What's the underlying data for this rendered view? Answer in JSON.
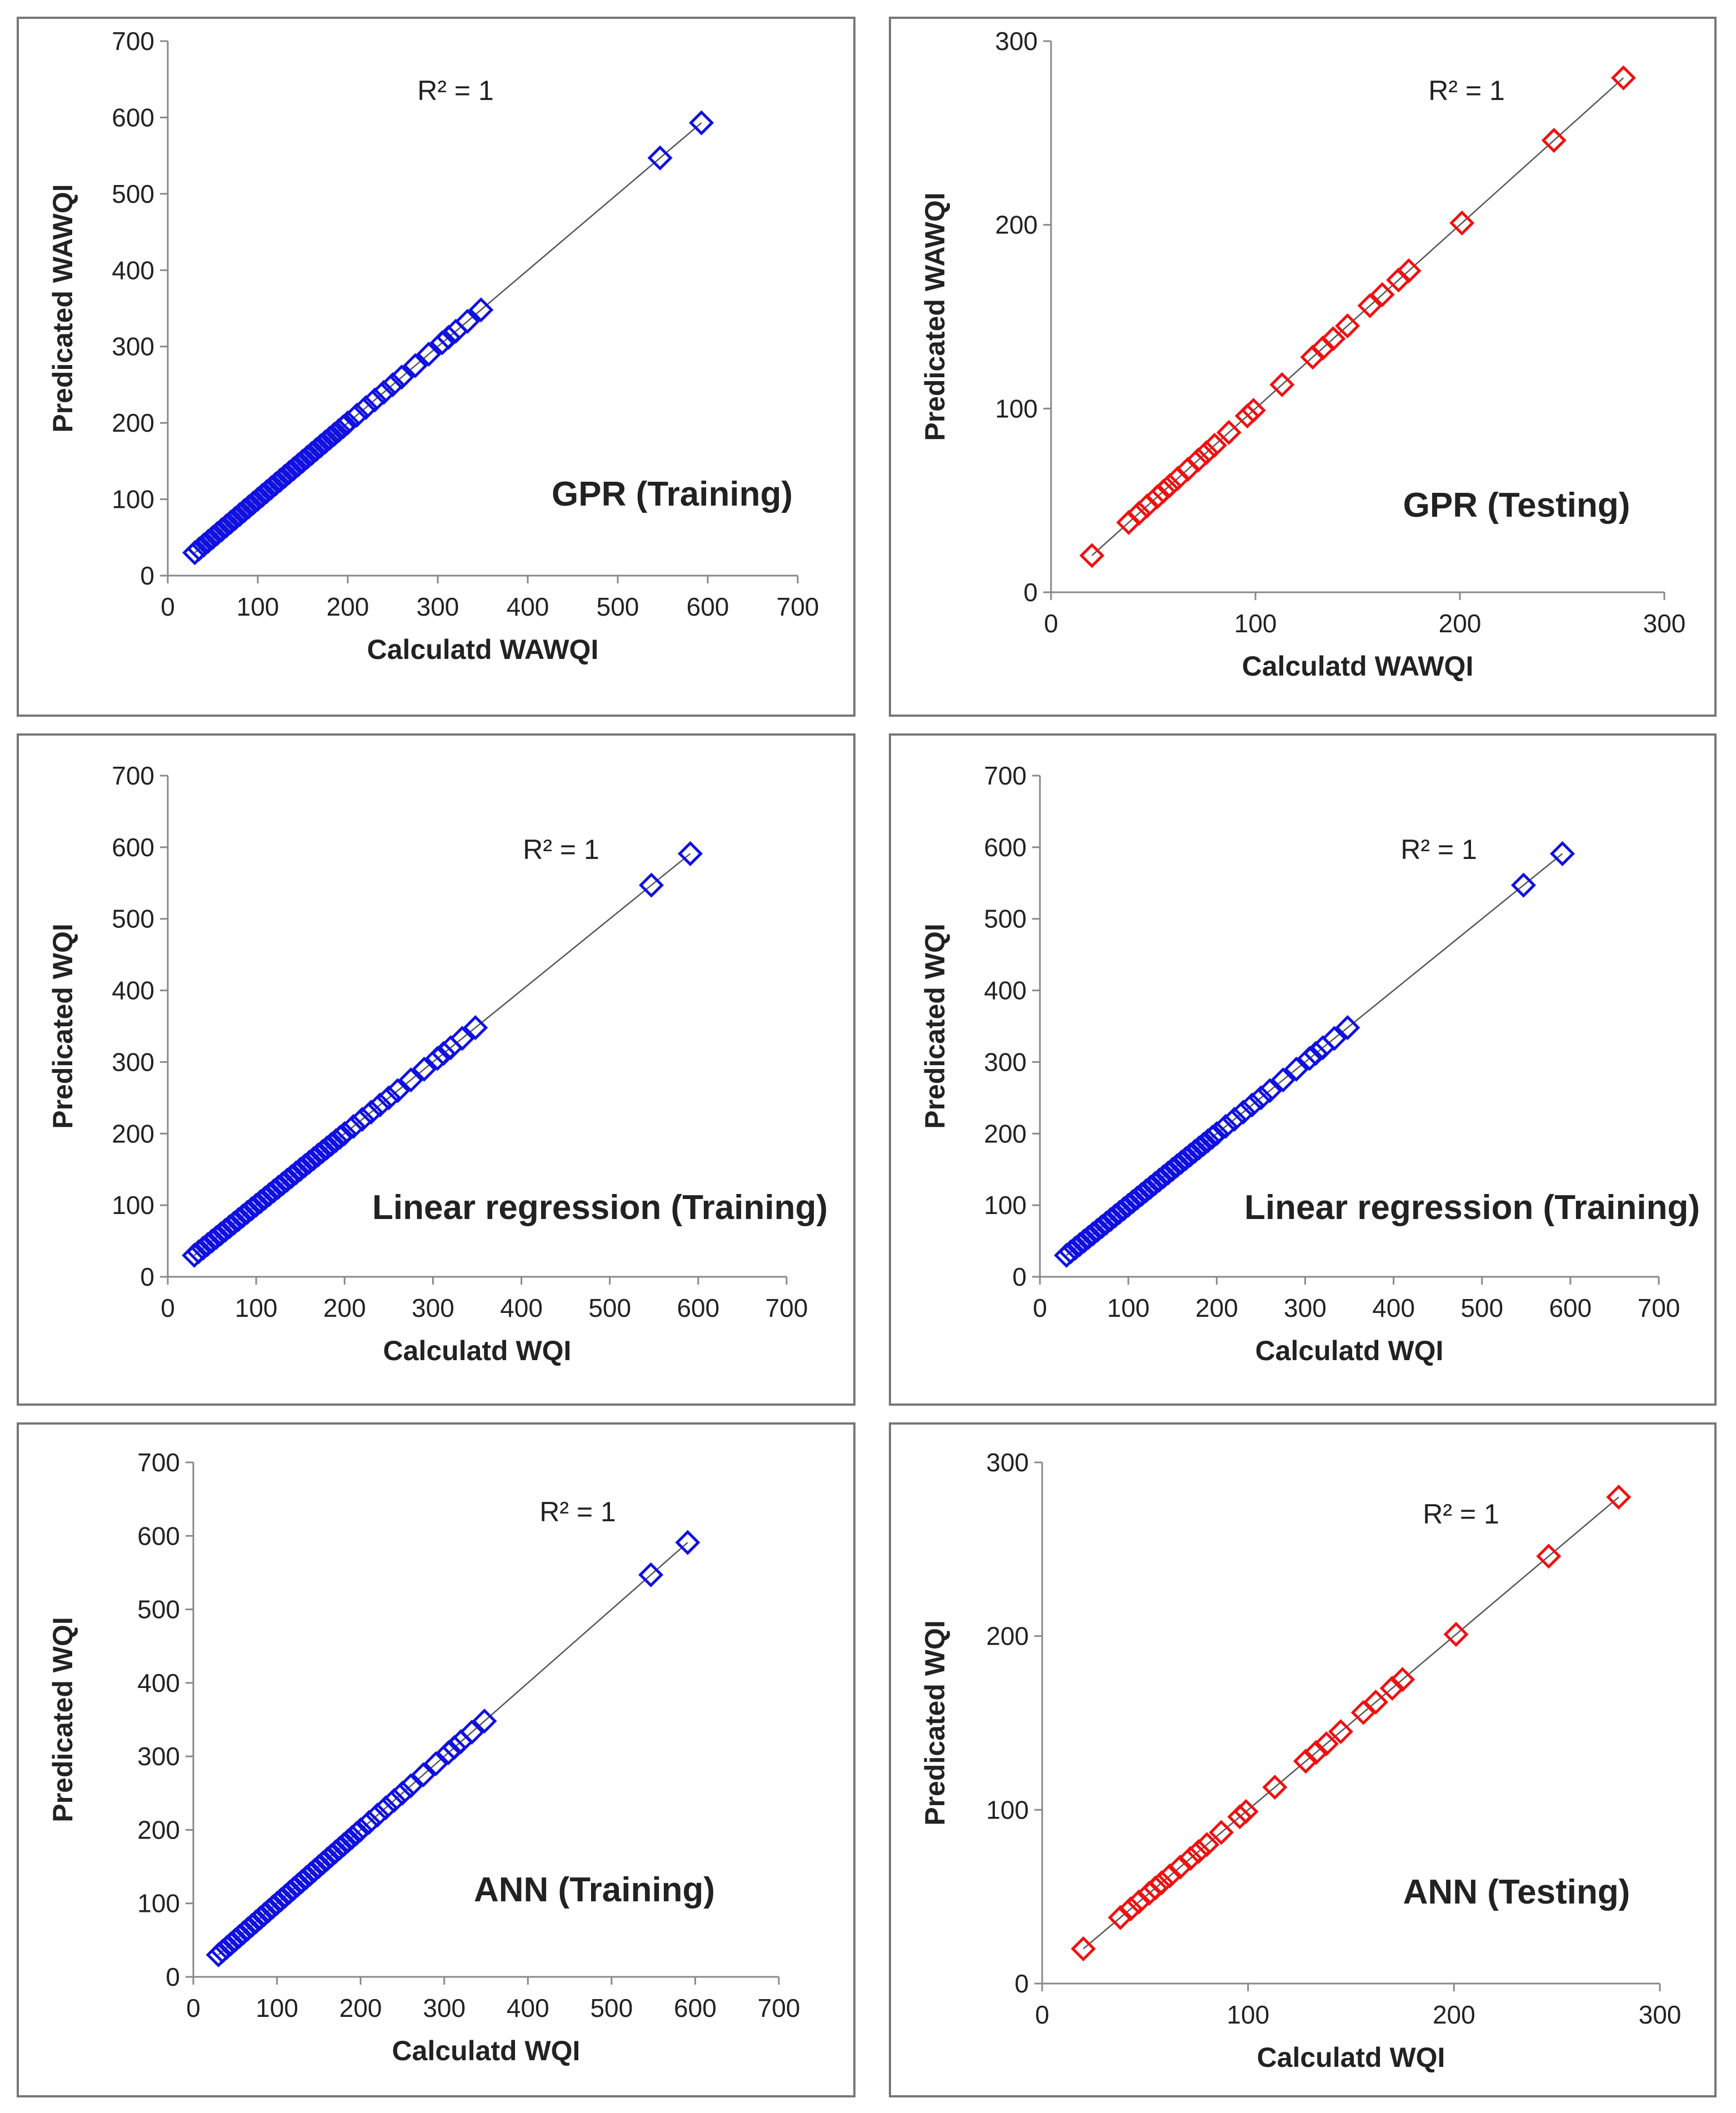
{
  "colors": {
    "training": "#1010e0",
    "testing": "#ee1111",
    "fit_line": "#555555",
    "axis": "#888888",
    "frame": "#777777"
  },
  "chart_data": [
    {
      "type": "scatter",
      "title": "GPR (Training)",
      "xlabel": "Calculatd WAWQI",
      "ylabel": "Predicated WAWQI",
      "annotation": "R² = 1",
      "xlim": [
        0,
        700
      ],
      "ylim": [
        0,
        700
      ],
      "xticks": [
        "0",
        "100",
        "200",
        "300",
        "400",
        "500",
        "600",
        "700"
      ],
      "yticks": [
        "0",
        "100",
        "200",
        "300",
        "400",
        "500",
        "600",
        "700"
      ],
      "series": [
        {
          "name": "Training",
          "color": "#1010e0",
          "x": [
            30,
            35,
            40,
            45,
            50,
            55,
            60,
            65,
            70,
            75,
            80,
            85,
            90,
            95,
            100,
            105,
            110,
            115,
            120,
            125,
            130,
            135,
            140,
            145,
            150,
            155,
            160,
            165,
            170,
            175,
            180,
            185,
            190,
            195,
            200,
            210,
            220,
            230,
            240,
            250,
            260,
            275,
            290,
            305,
            312,
            320,
            333,
            348,
            547,
            593
          ],
          "y": [
            30,
            35,
            40,
            45,
            50,
            55,
            60,
            65,
            70,
            75,
            80,
            85,
            90,
            95,
            100,
            105,
            110,
            115,
            120,
            125,
            130,
            135,
            140,
            145,
            150,
            155,
            160,
            165,
            170,
            175,
            180,
            185,
            190,
            195,
            200,
            210,
            220,
            230,
            240,
            250,
            260,
            275,
            290,
            305,
            312,
            320,
            333,
            348,
            547,
            593
          ]
        }
      ],
      "fit_line": [
        [
          30,
          30
        ],
        [
          593,
          593
        ]
      ]
    },
    {
      "type": "scatter",
      "title": "GPR (Testing)",
      "xlabel": "Calculatd WAWQI",
      "ylabel": "Predicated WAWQI",
      "annotation": "R² = 1",
      "xlim": [
        0,
        300
      ],
      "ylim": [
        0,
        300
      ],
      "xticks": [
        "0",
        "100",
        "200",
        "300"
      ],
      "yticks": [
        "0",
        "100",
        "200",
        "300"
      ],
      "series": [
        {
          "name": "Testing",
          "color": "#ee1111",
          "x": [
            20,
            38,
            43,
            47,
            52,
            55,
            58,
            62,
            67,
            72,
            76,
            80,
            87,
            96,
            99,
            113,
            128,
            133,
            138,
            145,
            156,
            162,
            170,
            175,
            201,
            246,
            280
          ],
          "y": [
            20,
            38,
            43,
            47,
            52,
            55,
            58,
            62,
            67,
            72,
            76,
            80,
            87,
            96,
            99,
            113,
            128,
            133,
            138,
            145,
            156,
            162,
            170,
            175,
            201,
            246,
            280
          ]
        }
      ],
      "fit_line": [
        [
          20,
          20
        ],
        [
          280,
          280
        ]
      ]
    },
    {
      "type": "scatter",
      "title": "Linear regression (Training)",
      "xlabel": "Calculatd WQI",
      "ylabel": "Predicated WQI",
      "annotation": "R² = 1",
      "xlim": [
        0,
        700
      ],
      "ylim": [
        0,
        700
      ],
      "xticks": [
        "0",
        "100",
        "200",
        "300",
        "400",
        "500",
        "600",
        "700"
      ],
      "yticks": [
        "0",
        "100",
        "200",
        "300",
        "400",
        "500",
        "600",
        "700"
      ],
      "series": [
        {
          "name": "Training",
          "color": "#1010e0",
          "x": [
            30,
            35,
            40,
            45,
            50,
            55,
            60,
            65,
            70,
            75,
            80,
            85,
            90,
            95,
            100,
            105,
            110,
            115,
            120,
            125,
            130,
            135,
            140,
            145,
            150,
            155,
            160,
            165,
            170,
            175,
            180,
            185,
            190,
            195,
            200,
            210,
            220,
            230,
            240,
            250,
            260,
            275,
            290,
            305,
            312,
            320,
            333,
            348,
            547,
            591
          ],
          "y": [
            30,
            35,
            40,
            45,
            50,
            55,
            60,
            65,
            70,
            75,
            80,
            85,
            90,
            95,
            100,
            105,
            110,
            115,
            120,
            125,
            130,
            135,
            140,
            145,
            150,
            155,
            160,
            165,
            170,
            175,
            180,
            185,
            190,
            195,
            200,
            210,
            220,
            230,
            240,
            250,
            260,
            275,
            290,
            305,
            312,
            320,
            333,
            348,
            547,
            591
          ]
        }
      ],
      "fit_line": [
        [
          30,
          30
        ],
        [
          591,
          591
        ]
      ]
    },
    {
      "type": "scatter",
      "title": "Linear regression (Training)",
      "xlabel": "Calculatd WQI",
      "ylabel": "Predicated WQI",
      "annotation": "R² = 1",
      "xlim": [
        0,
        700
      ],
      "ylim": [
        0,
        700
      ],
      "xticks": [
        "0",
        "100",
        "200",
        "300",
        "400",
        "500",
        "600",
        "700"
      ],
      "yticks": [
        "0",
        "100",
        "200",
        "300",
        "400",
        "500",
        "600",
        "700"
      ],
      "series": [
        {
          "name": "Training",
          "color": "#1010e0",
          "x": [
            30,
            35,
            40,
            45,
            50,
            55,
            60,
            65,
            70,
            75,
            80,
            85,
            90,
            95,
            100,
            105,
            110,
            115,
            120,
            125,
            130,
            135,
            140,
            145,
            150,
            155,
            160,
            165,
            170,
            175,
            180,
            185,
            190,
            195,
            200,
            210,
            220,
            230,
            240,
            250,
            260,
            275,
            290,
            305,
            312,
            320,
            333,
            348,
            547,
            591
          ],
          "y": [
            30,
            35,
            40,
            45,
            50,
            55,
            60,
            65,
            70,
            75,
            80,
            85,
            90,
            95,
            100,
            105,
            110,
            115,
            120,
            125,
            130,
            135,
            140,
            145,
            150,
            155,
            160,
            165,
            170,
            175,
            180,
            185,
            190,
            195,
            200,
            210,
            220,
            230,
            240,
            250,
            260,
            275,
            290,
            305,
            312,
            320,
            333,
            348,
            547,
            591
          ]
        }
      ],
      "fit_line": [
        [
          30,
          30
        ],
        [
          591,
          591
        ]
      ]
    },
    {
      "type": "scatter",
      "title": "ANN (Training)",
      "xlabel": "Calculatd WQI",
      "ylabel": "Predicated WQI",
      "annotation": "R² = 1",
      "xlim": [
        0,
        700
      ],
      "ylim": [
        0,
        700
      ],
      "xticks": [
        "0",
        "100",
        "200",
        "300",
        "400",
        "500",
        "600",
        "700"
      ],
      "yticks": [
        "0",
        "100",
        "200",
        "300",
        "400",
        "500",
        "600",
        "700"
      ],
      "series": [
        {
          "name": "Training",
          "color": "#1010e0",
          "x": [
            30,
            35,
            40,
            45,
            50,
            55,
            60,
            65,
            70,
            75,
            80,
            85,
            90,
            95,
            100,
            105,
            110,
            115,
            120,
            125,
            130,
            135,
            140,
            145,
            150,
            155,
            160,
            165,
            170,
            175,
            180,
            185,
            190,
            195,
            200,
            210,
            220,
            230,
            240,
            250,
            260,
            275,
            290,
            305,
            312,
            320,
            333,
            348,
            547,
            591
          ],
          "y": [
            30,
            35,
            40,
            45,
            50,
            55,
            60,
            65,
            70,
            75,
            80,
            85,
            90,
            95,
            100,
            105,
            110,
            115,
            120,
            125,
            130,
            135,
            140,
            145,
            150,
            155,
            160,
            165,
            170,
            175,
            180,
            185,
            190,
            195,
            200,
            210,
            220,
            230,
            240,
            250,
            260,
            275,
            290,
            305,
            312,
            320,
            333,
            348,
            547,
            591
          ]
        }
      ],
      "fit_line": [
        [
          30,
          30
        ],
        [
          591,
          591
        ]
      ]
    },
    {
      "type": "scatter",
      "title": "ANN (Testing)",
      "xlabel": "Calculatd WQI",
      "ylabel": "Predicated WQI",
      "annotation": "R² = 1",
      "xlim": [
        0,
        300
      ],
      "ylim": [
        0,
        300
      ],
      "xticks": [
        "0",
        "100",
        "200",
        "300"
      ],
      "yticks": [
        "0",
        "100",
        "200",
        "300"
      ],
      "series": [
        {
          "name": "Testing",
          "color": "#ee1111",
          "x": [
            20,
            38,
            43,
            47,
            52,
            55,
            58,
            62,
            67,
            72,
            76,
            80,
            87,
            96,
            99,
            113,
            128,
            133,
            138,
            145,
            156,
            162,
            170,
            175,
            201,
            246,
            280
          ],
          "y": [
            20,
            38,
            43,
            47,
            52,
            55,
            58,
            62,
            67,
            72,
            76,
            80,
            87,
            96,
            99,
            113,
            128,
            133,
            138,
            145,
            156,
            162,
            170,
            175,
            201,
            246,
            280
          ]
        }
      ],
      "fit_line": [
        [
          20,
          20
        ],
        [
          280,
          280
        ]
      ]
    }
  ]
}
